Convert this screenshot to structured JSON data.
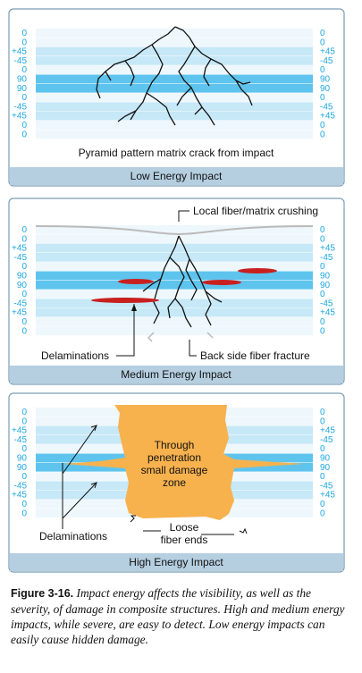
{
  "ply_labels": [
    "0",
    "0",
    "+45",
    "-45",
    "0",
    "90",
    "90",
    "0",
    "-45",
    "+45",
    "0",
    "0"
  ],
  "panels": [
    {
      "annotations": {
        "crack": "Pyramid pattern matrix crack from impact"
      },
      "title": "Low Energy Impact"
    },
    {
      "annotations": {
        "crushing": "Local fiber/matrix crushing",
        "delaminations": "Delaminations",
        "back_fracture": "Back side fiber fracture"
      },
      "title": "Medium Energy Impact"
    },
    {
      "annotations": {
        "zone": [
          "Through",
          "penetration",
          "small damage",
          "zone"
        ],
        "delaminations": "Delaminations",
        "loose": [
          "Loose",
          "fiber ends"
        ]
      },
      "title": "High Energy Impact"
    }
  ],
  "caption": {
    "label": "Figure 3-16.",
    "text": "Impact energy affects the visibility, as well as the severity, of damage in composite structures. High and medium energy impacts, while severe, are easy to detect. Low energy impacts can easily cause hidden damage."
  }
}
